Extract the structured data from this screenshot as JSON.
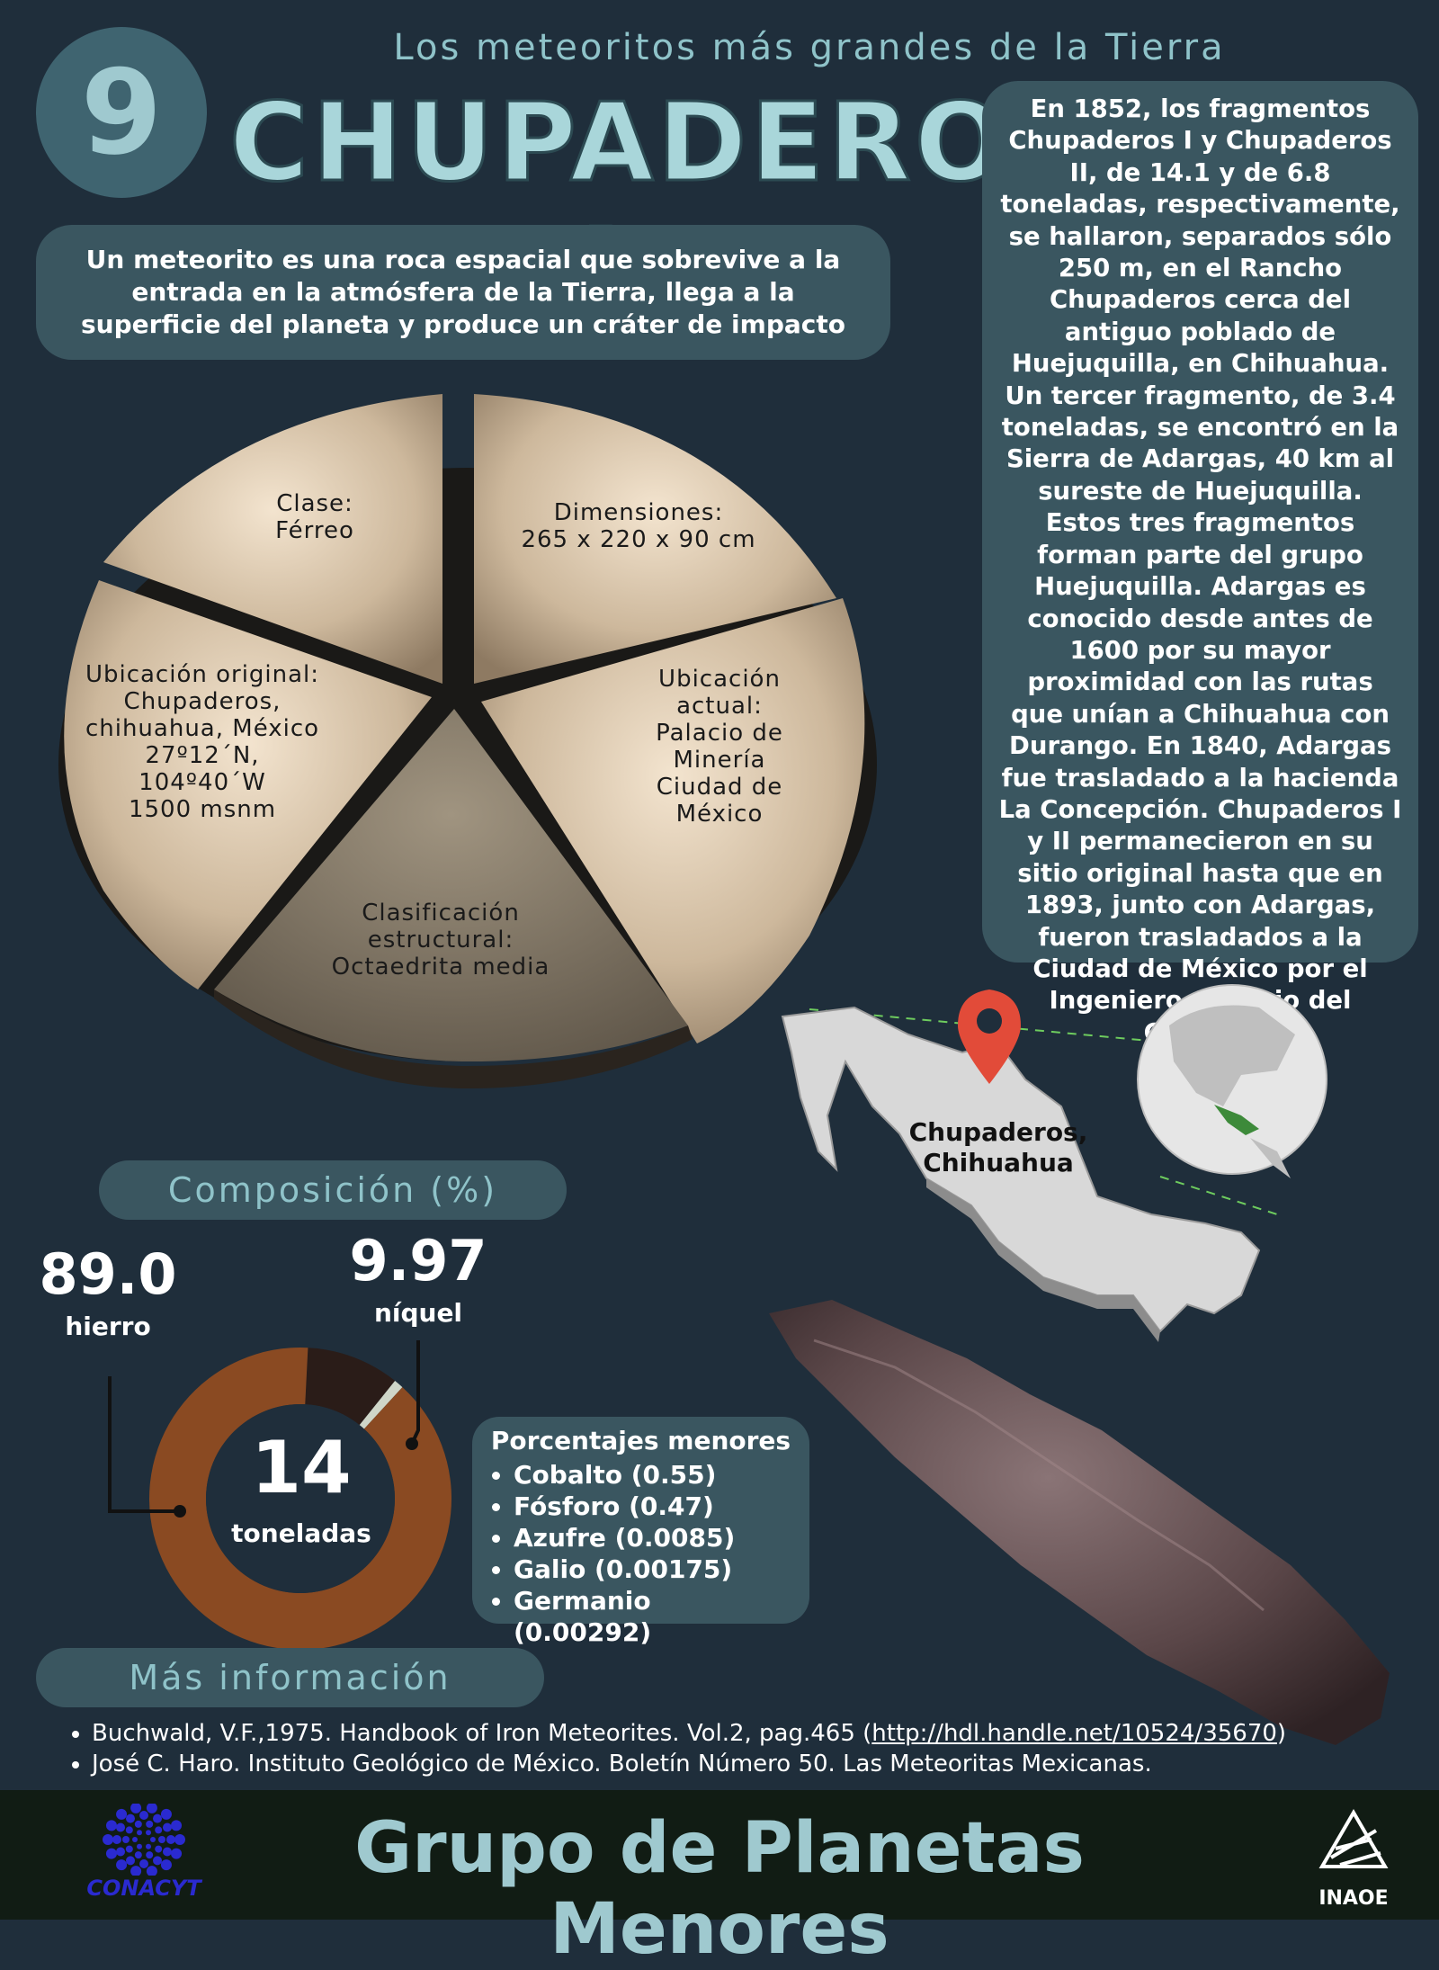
{
  "header": {
    "number": "9",
    "subtitle": "Los meteoritos más grandes de la Tierra",
    "title": "CHUPADEROS I"
  },
  "definition": "Un meteorito es una roca espacial que sobrevive a la entrada en la atmósfera de la Tierra, llega a la superficie del planeta y produce un cráter de impacto",
  "history": "En 1852, los fragmentos Chupaderos I y Chupaderos II, de 14.1 y de 6.8 toneladas, respectivamente, se hallaron, separados sólo 250 m, en el Rancho Chupaderos cerca del antiguo poblado de Huejuquilla, en Chihuahua. Un tercer fragmento, de 3.4 toneladas, se encontró en la Sierra de Adargas, 40 km al sureste de Huejuquilla. Estos tres fragmentos forman parte del grupo Huejuquilla. Adargas es conocido desde antes de 1600 por su mayor proximidad con las rutas que unían a Chihuahua con Durango. En 1840, Adargas fue trasladado a la hacienda La Concepción. Chupaderos I y II permanecieron en su sitio original hasta que en 1893, junto con Adargas, fueron trasladados a la Ciudad de México por el Ingeniero Antonio del Castillo.",
  "pie": {
    "clase": [
      "Clase:",
      "Férreo"
    ],
    "dimensiones": [
      "Dimensiones:",
      "265 x 220 x 90 cm"
    ],
    "ubicacion_actual": [
      "Ubicación",
      "actual:",
      "Palacio de",
      "Minería",
      "Ciudad de",
      "México"
    ],
    "ubicacion_original": [
      "Ubicación original:",
      "Chupaderos,",
      "chihuahua, México",
      "27º12´N,",
      "104º40´W",
      "1500 msnm"
    ],
    "clasificacion": [
      "Clasificación",
      "estructural:",
      "Octaedrita  media"
    ]
  },
  "map": {
    "location_line1": "Chupaderos,",
    "location_line2": "Chihuahua"
  },
  "composition": {
    "heading": "Composición (%)",
    "iron_value": "89.0",
    "iron_label": "hierro",
    "nickel_value": "9.97",
    "nickel_label": "níquel",
    "total_value": "14",
    "total_label": "toneladas",
    "donut_fractions": {
      "iron": 0.89,
      "nickel": 0.0997,
      "other": 0.0103
    },
    "colors": {
      "iron": "#8a4a22",
      "nickel": "#2a1c18",
      "other": "#cfd6c8"
    }
  },
  "minor": {
    "heading": "Porcentajes menores",
    "items": [
      "Cobalto (0.55)",
      "Fósforo (0.47)",
      "Azufre (0.0085)",
      "Galio (0.00175)",
      "Germanio (0.00292)"
    ]
  },
  "more_info": {
    "heading": "Más información",
    "ref1_text": "Buchwald, V.F.,1975. Handbook of Iron Meteorites. Vol.2, pag.465 (",
    "ref1_link": "http://hdl.handle.net/10524/35670",
    "ref1_end": ")",
    "ref2": "José C. Haro. Instituto Geológico de México. Boletín Número 50. Las Meteoritas Mexicanas."
  },
  "footer": {
    "title": "Grupo de Planetas Menores",
    "left_logo": "CONACYT",
    "right_logo": "INAOE"
  }
}
